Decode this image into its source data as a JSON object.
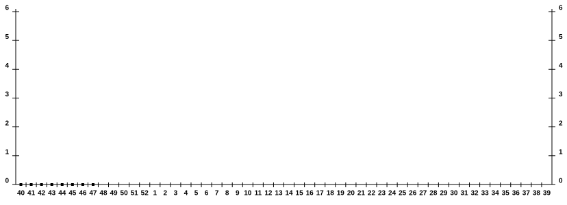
{
  "chart_data": {
    "type": "line",
    "categories": [
      "40",
      "41",
      "42",
      "43",
      "44",
      "45",
      "46",
      "47",
      "48",
      "49",
      "50",
      "51",
      "52",
      "1",
      "2",
      "3",
      "4",
      "5",
      "6",
      "7",
      "8",
      "9",
      "10",
      "11",
      "12",
      "13",
      "14",
      "15",
      "16",
      "17",
      "18",
      "19",
      "20",
      "21",
      "22",
      "23",
      "24",
      "25",
      "26",
      "27",
      "28",
      "29",
      "30",
      "31",
      "32",
      "33",
      "34",
      "35",
      "36",
      "37",
      "38",
      "39"
    ],
    "series": [
      {
        "color": "#000000",
        "values": [
          0,
          0,
          0,
          0,
          0,
          0,
          0,
          0,
          null,
          null,
          null,
          null,
          null,
          null,
          null,
          null,
          null,
          null,
          null,
          null,
          null,
          null,
          null,
          null,
          null,
          null,
          null,
          null,
          null,
          null,
          null,
          null,
          null,
          null,
          null,
          null,
          null,
          null,
          null,
          null,
          null,
          null,
          null,
          null,
          null,
          null,
          null,
          null,
          null,
          null,
          null,
          null
        ]
      }
    ],
    "ylim": [
      0,
      6
    ],
    "yticks": [
      0,
      1,
      2,
      3,
      4,
      5,
      6
    ],
    "y2lim": [
      0,
      6
    ],
    "y2ticks": [
      0,
      1,
      2,
      3,
      4,
      5,
      6
    ]
  }
}
